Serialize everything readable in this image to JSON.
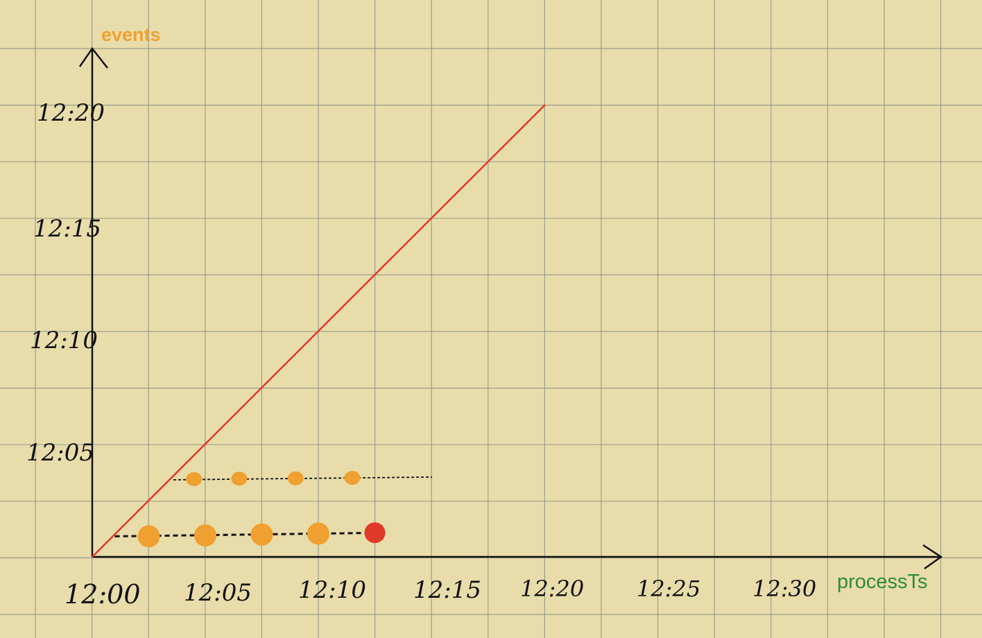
{
  "axes": {
    "y_title": "events",
    "x_title": "processTs",
    "y_title_color": "#f0a030",
    "x_title_color": "#2e8b3a",
    "y_ticks": [
      "12:20",
      "12:15",
      "12:10",
      "12:05"
    ],
    "x_ticks": [
      "12:00",
      "12:05",
      "12:10",
      "12:15",
      "12:20",
      "12:25",
      "12:30"
    ]
  },
  "colors": {
    "paper": "#e8dcaa",
    "grid": "#8a8f86",
    "axis": "#111111",
    "diagonal": "#e0392b",
    "dot": "#f0a030",
    "dot_highlight": "#e0392b",
    "dash": "#111111"
  },
  "series": {
    "row_low": {
      "event_time": "12:01",
      "process_times": [
        "12:02.5",
        "12:05",
        "12:07.5",
        "12:10",
        "12:12.5"
      ],
      "highlight_index": 4
    },
    "row_high": {
      "event_time": "12:03.5",
      "process_times": [
        "12:04.5",
        "12:06.5",
        "12:09",
        "12:11.5"
      ]
    }
  }
}
